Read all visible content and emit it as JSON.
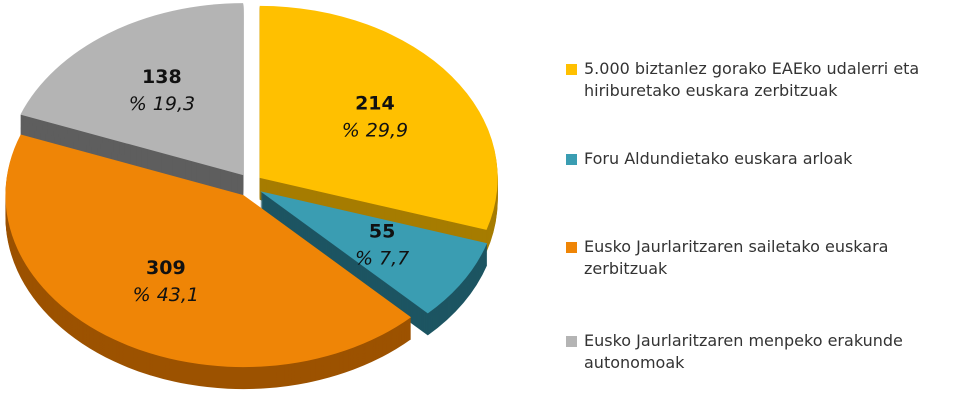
{
  "chart_data": {
    "type": "pie",
    "categories": [
      "5.000 biztanlez gorako EAEko udalerri eta hiriburetako euskara zerbitzuak",
      "Foru Aldundietako euskara arloak",
      "Eusko Jaurlaritzaren sailetako euskara zerbitzuak",
      "Eusko Jaurlaritzaren menpeko erakunde autonomoak"
    ],
    "values": [
      214,
      55,
      309,
      138
    ],
    "percentages": [
      29.9,
      7.7,
      43.1,
      19.3
    ],
    "percentage_labels": [
      "% 29,9",
      "% 7,7",
      "% 43,1",
      "% 19,3"
    ],
    "colors": [
      "#ffc000",
      "#3a9db2",
      "#ef8506",
      "#b4b4b4"
    ],
    "side_colors": [
      "#a67c00",
      "#1d5562",
      "#9c5200",
      "#5e5e5e"
    ],
    "legend": "right"
  }
}
